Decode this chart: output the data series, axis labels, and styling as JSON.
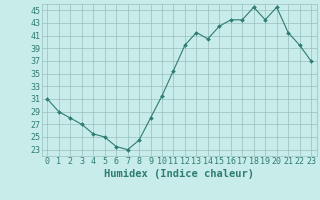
{
  "x": [
    0,
    1,
    2,
    3,
    4,
    5,
    6,
    7,
    8,
    9,
    10,
    11,
    12,
    13,
    14,
    15,
    16,
    17,
    18,
    19,
    20,
    21,
    22,
    23
  ],
  "y": [
    31,
    29,
    28,
    27,
    25.5,
    25,
    23.5,
    23,
    24.5,
    28,
    31.5,
    35.5,
    39.5,
    41.5,
    40.5,
    42.5,
    43.5,
    43.5,
    45.5,
    43.5,
    45.5,
    41.5,
    39.5,
    37
  ],
  "line_color": "#2E7D6E",
  "marker": "D",
  "marker_size": 2,
  "bg_color": "#C8ECEA",
  "grid_color": "#9ABFBD",
  "xlabel": "Humidex (Indice chaleur)",
  "ylim": [
    22,
    46
  ],
  "xlim": [
    -0.5,
    23.5
  ],
  "yticks": [
    23,
    25,
    27,
    29,
    31,
    33,
    35,
    37,
    39,
    41,
    43,
    45
  ],
  "xticks": [
    0,
    1,
    2,
    3,
    4,
    5,
    6,
    7,
    8,
    9,
    10,
    11,
    12,
    13,
    14,
    15,
    16,
    17,
    18,
    19,
    20,
    21,
    22,
    23
  ],
  "tick_color": "#2E7D6E",
  "label_color": "#2E7D6E",
  "xlabel_fontsize": 7.5,
  "tick_fontsize": 6.0,
  "linewidth": 0.8
}
